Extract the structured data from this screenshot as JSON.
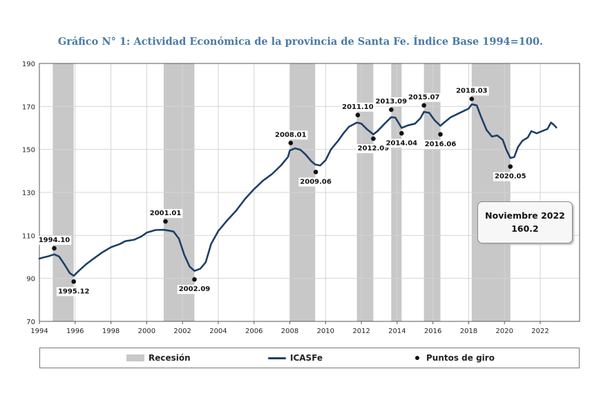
{
  "chart_data": {
    "type": "line",
    "title": "Gráfico N° 1: Actividad Económica de la provincia de Santa Fe. Índice Base 1994=100.",
    "xlabel": "",
    "ylabel": "",
    "xlim": [
      1994,
      2024.2
    ],
    "ylim": [
      70,
      190
    ],
    "x_ticks": [
      "1994",
      "1996",
      "1998",
      "2000",
      "2002",
      "2004",
      "2006",
      "2008",
      "2010",
      "2012",
      "2014",
      "2016",
      "2018",
      "2020",
      "2022"
    ],
    "y_ticks": [
      "70",
      "90",
      "110",
      "130",
      "150",
      "170",
      "190"
    ],
    "recessions": [
      [
        1994.75,
        1995.92
      ],
      [
        2000.95,
        2002.67
      ],
      [
        2008.0,
        2009.42
      ],
      [
        2011.75,
        2012.67
      ],
      [
        2013.67,
        2014.25
      ],
      [
        2015.5,
        2016.42
      ],
      [
        2018.17,
        2020.33
      ]
    ],
    "series": [
      {
        "name": "ICASFe",
        "color": "#1d3f66",
        "points": [
          [
            1994.0,
            99.2
          ],
          [
            1994.25,
            99.8
          ],
          [
            1994.5,
            100.3
          ],
          [
            1994.83,
            101.2
          ],
          [
            1995.1,
            100.2
          ],
          [
            1995.4,
            96.5
          ],
          [
            1995.7,
            92.5
          ],
          [
            1995.92,
            91.2
          ],
          [
            1996.2,
            93.5
          ],
          [
            1996.6,
            96.5
          ],
          [
            1997.0,
            99.0
          ],
          [
            1997.5,
            102.0
          ],
          [
            1998.0,
            104.5
          ],
          [
            1998.5,
            106.0
          ],
          [
            1998.8,
            107.3
          ],
          [
            1999.3,
            108.0
          ],
          [
            1999.7,
            109.5
          ],
          [
            2000.0,
            111.3
          ],
          [
            2000.5,
            112.5
          ],
          [
            2000.95,
            112.6
          ],
          [
            2001.2,
            112.3
          ],
          [
            2001.5,
            111.8
          ],
          [
            2001.8,
            108.5
          ],
          [
            2002.1,
            101.0
          ],
          [
            2002.4,
            95.5
          ],
          [
            2002.67,
            93.5
          ],
          [
            2003.0,
            94.5
          ],
          [
            2003.3,
            97.5
          ],
          [
            2003.6,
            106.0
          ],
          [
            2004.0,
            112.0
          ],
          [
            2004.5,
            117.0
          ],
          [
            2005.0,
            121.5
          ],
          [
            2005.5,
            127.0
          ],
          [
            2006.0,
            131.5
          ],
          [
            2006.5,
            135.5
          ],
          [
            2007.0,
            138.5
          ],
          [
            2007.5,
            142.5
          ],
          [
            2007.9,
            146.5
          ],
          [
            2008.0,
            149.5
          ],
          [
            2008.3,
            150.5
          ],
          [
            2008.6,
            149.8
          ],
          [
            2008.9,
            147.5
          ],
          [
            2009.2,
            144.5
          ],
          [
            2009.42,
            143.0
          ],
          [
            2009.7,
            142.5
          ],
          [
            2010.0,
            145.0
          ],
          [
            2010.3,
            150.0
          ],
          [
            2010.7,
            154.0
          ],
          [
            2011.0,
            157.5
          ],
          [
            2011.3,
            160.5
          ],
          [
            2011.75,
            162.5
          ],
          [
            2012.0,
            162.0
          ],
          [
            2012.3,
            159.5
          ],
          [
            2012.67,
            157.0
          ],
          [
            2012.9,
            158.5
          ],
          [
            2013.3,
            162.0
          ],
          [
            2013.67,
            165.0
          ],
          [
            2013.9,
            164.8
          ],
          [
            2014.25,
            160.0
          ],
          [
            2014.6,
            161.2
          ],
          [
            2015.0,
            162.0
          ],
          [
            2015.3,
            164.5
          ],
          [
            2015.5,
            167.5
          ],
          [
            2015.8,
            167.0
          ],
          [
            2016.1,
            163.5
          ],
          [
            2016.42,
            161.0
          ],
          [
            2016.7,
            163.0
          ],
          [
            2017.0,
            165.0
          ],
          [
            2017.5,
            167.0
          ],
          [
            2018.0,
            169.0
          ],
          [
            2018.17,
            171.0
          ],
          [
            2018.45,
            170.5
          ],
          [
            2018.7,
            165.0
          ],
          [
            2019.0,
            159.0
          ],
          [
            2019.3,
            156.0
          ],
          [
            2019.6,
            156.5
          ],
          [
            2019.9,
            154.5
          ],
          [
            2020.1,
            150.0
          ],
          [
            2020.33,
            146.0
          ],
          [
            2020.55,
            146.5
          ],
          [
            2020.75,
            151.0
          ],
          [
            2021.0,
            154.0
          ],
          [
            2021.3,
            155.5
          ],
          [
            2021.5,
            158.5
          ],
          [
            2021.8,
            157.5
          ],
          [
            2022.1,
            158.5
          ],
          [
            2022.4,
            159.5
          ],
          [
            2022.6,
            162.5
          ],
          [
            2022.75,
            161.5
          ],
          [
            2022.9,
            160.2
          ]
        ]
      }
    ],
    "turning_points": [
      {
        "label": "1994.10",
        "x": 1994.83,
        "y": 104.0,
        "pos": "above"
      },
      {
        "label": "1995.12",
        "x": 1995.92,
        "y": 88.5,
        "pos": "below"
      },
      {
        "label": "2001.01",
        "x": 2001.05,
        "y": 116.5,
        "pos": "above"
      },
      {
        "label": "2002.09",
        "x": 2002.67,
        "y": 89.5,
        "pos": "below"
      },
      {
        "label": "2008.01",
        "x": 2008.05,
        "y": 153.0,
        "pos": "above"
      },
      {
        "label": "2009.06",
        "x": 2009.45,
        "y": 139.5,
        "pos": "below"
      },
      {
        "label": "2011.10",
        "x": 2011.8,
        "y": 166.0,
        "pos": "above"
      },
      {
        "label": "2012.09",
        "x": 2012.67,
        "y": 155.0,
        "pos": "below"
      },
      {
        "label": "2013.09",
        "x": 2013.67,
        "y": 168.5,
        "pos": "above"
      },
      {
        "label": "2014.04",
        "x": 2014.25,
        "y": 157.5,
        "pos": "below"
      },
      {
        "label": "2015.07",
        "x": 2015.5,
        "y": 170.5,
        "pos": "above"
      },
      {
        "label": "2016.06",
        "x": 2016.42,
        "y": 157.0,
        "pos": "below"
      },
      {
        "label": "2018.03",
        "x": 2018.17,
        "y": 173.5,
        "pos": "above"
      },
      {
        "label": "2020.05",
        "x": 2020.33,
        "y": 142.0,
        "pos": "below"
      }
    ],
    "callout": {
      "line1": "Noviembre 2022",
      "line2": "160.2"
    },
    "legend": {
      "recession": "Recesión",
      "series": "ICASFe",
      "points": "Puntos de giro",
      "placement": "bottom"
    },
    "colors": {
      "recession": "#c8c8c8",
      "series": "#1d3f66",
      "points": "#111111",
      "grid": "#d4d4d4",
      "title": "#4a7aa8"
    }
  }
}
